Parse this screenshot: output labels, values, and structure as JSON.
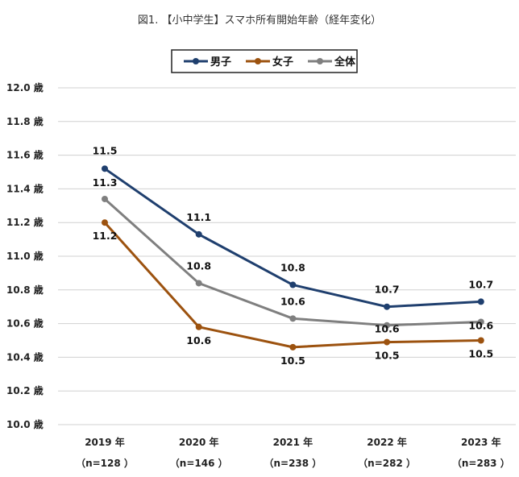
{
  "chart_data": {
    "type": "line",
    "title": "図1. 【小中学生】スマホ所有開始年齢（経年変化）",
    "categories": [
      "2019 年",
      "2020 年",
      "2021 年",
      "2022 年",
      "2023 年"
    ],
    "category_sublabels": [
      "（n=128 ）",
      "（n=146 ）",
      "（n=238 ）",
      "（n=282 ）",
      "（n=283 ）"
    ],
    "ylim": [
      10.0,
      12.0
    ],
    "yticks": [
      10.0,
      10.2,
      10.4,
      10.6,
      10.8,
      11.0,
      11.2,
      11.4,
      11.6,
      11.8,
      12.0
    ],
    "ytick_suffix": " 歳",
    "grid": true,
    "legend_position": "top",
    "series": [
      {
        "name": "男子",
        "color": "#1f3f6e",
        "values": [
          11.52,
          11.13,
          10.83,
          10.7,
          10.73
        ],
        "labels": [
          "11.5",
          "11.1",
          "10.8",
          "10.7",
          "10.7"
        ]
      },
      {
        "name": "女子",
        "color": "#9c520f",
        "values": [
          11.2,
          10.58,
          10.46,
          10.49,
          10.5
        ],
        "labels": [
          "11.2",
          "10.6",
          "10.5",
          "10.5",
          "10.5"
        ]
      },
      {
        "name": "全体",
        "color": "#7f7f7f",
        "values": [
          11.34,
          10.84,
          10.63,
          10.59,
          10.61
        ],
        "labels": [
          "11.3",
          "10.8",
          "10.6",
          "10.6",
          "10.6"
        ]
      }
    ]
  }
}
